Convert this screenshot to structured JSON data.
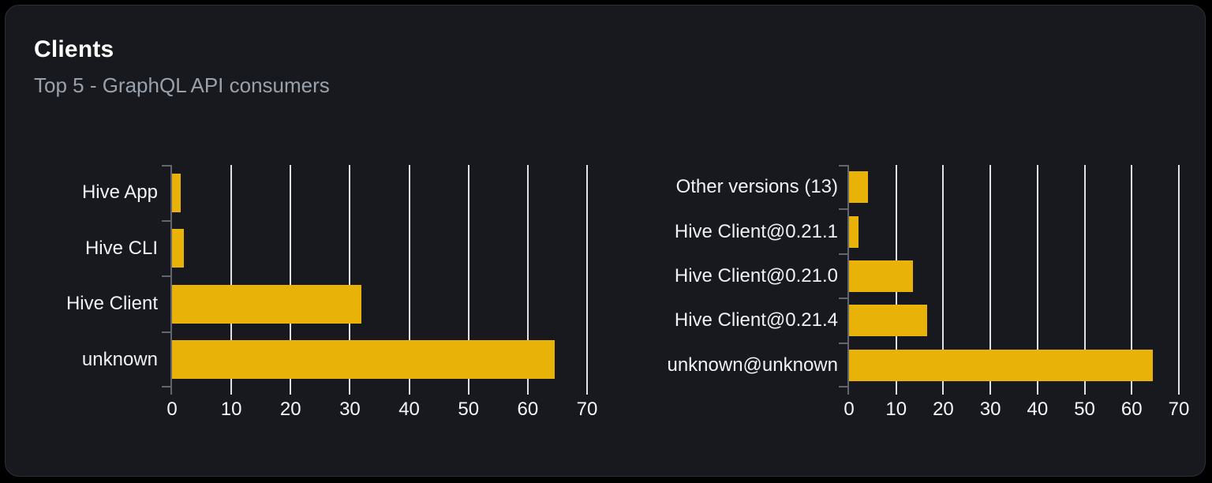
{
  "card": {
    "title": "Clients",
    "subtitle": "Top 5 - GraphQL API consumers"
  },
  "colors": {
    "bar": "#e9b208",
    "grid": "#dfe3e8",
    "axis": "#62666e",
    "card_bg": "#17191f",
    "page_bg": "#000000",
    "title_text": "#ffffff",
    "subtitle_text": "#9ba1ab",
    "label_text": "#f0f1f3",
    "tick_text": "#f5f6f8"
  },
  "chart_data": [
    {
      "type": "bar",
      "orientation": "horizontal",
      "categories": [
        "Hive App",
        "Hive CLI",
        "Hive Client",
        "unknown"
      ],
      "values": [
        1.5,
        2,
        32,
        64.5
      ],
      "xlim": [
        0,
        70
      ],
      "xticks": [
        0,
        10,
        20,
        30,
        40,
        50,
        60,
        70
      ],
      "grid": true,
      "legend": false
    },
    {
      "type": "bar",
      "orientation": "horizontal",
      "categories": [
        "Other versions (13)",
        "Hive Client@0.21.1",
        "Hive Client@0.21.0",
        "Hive Client@0.21.4",
        "unknown@unknown"
      ],
      "values": [
        4,
        2,
        13.5,
        16.5,
        64.5
      ],
      "xlim": [
        0,
        70
      ],
      "xticks": [
        0,
        10,
        20,
        30,
        40,
        50,
        60,
        70
      ],
      "grid": true,
      "legend": false
    }
  ]
}
